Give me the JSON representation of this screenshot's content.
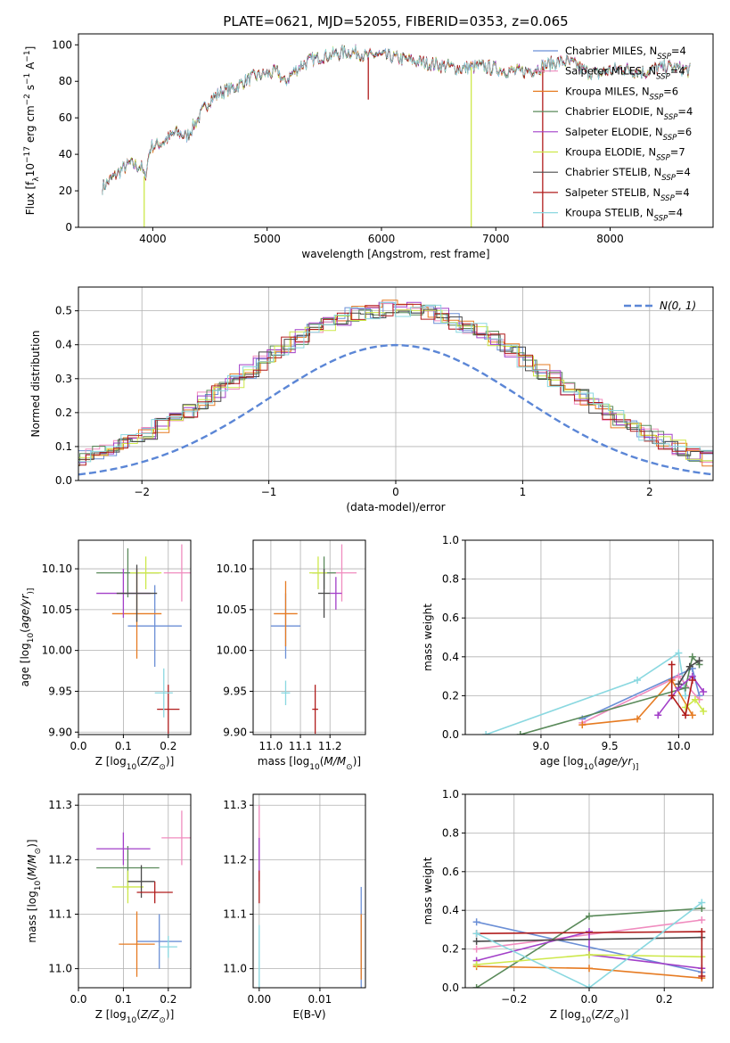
{
  "figure": {
    "title": "PLATE=0621, MJD=52055, FIBERID=0353, z=0.065"
  },
  "series_styles": [
    {
      "name": "Chabrier MILES",
      "label": "Chabrier MILES, N",
      "nssp": "4",
      "color": "#6b8fd6"
    },
    {
      "name": "Salpeter MILES",
      "label": "Salpeter MILES, N",
      "nssp": "4",
      "color": "#f08cbf"
    },
    {
      "name": "Kroupa MILES",
      "label": "Kroupa MILES, N",
      "nssp": "6",
      "color": "#e67b22"
    },
    {
      "name": "Chabrier ELODIE",
      "label": "Chabrier ELODIE, N",
      "nssp": "4",
      "color": "#5a8a5a"
    },
    {
      "name": "Salpeter ELODIE",
      "label": "Salpeter ELODIE, N",
      "nssp": "6",
      "color": "#a23fc8"
    },
    {
      "name": "Kroupa ELODIE",
      "label": "Kroupa ELODIE, N",
      "nssp": "7",
      "color": "#cde84a"
    },
    {
      "name": "Chabrier STELIB",
      "label": "Chabrier STELIB, N",
      "nssp": "4",
      "color": "#4a4a4a"
    },
    {
      "name": "Salpeter STELIB",
      "label": "Salpeter STELIB, N",
      "nssp": "4",
      "color": "#b01c1c"
    },
    {
      "name": "Kroupa STELIB",
      "label": "Kroupa STELIB, N",
      "nssp": "4",
      "color": "#8ad8e0"
    }
  ],
  "chart_data": [
    {
      "id": "spectrum",
      "type": "line",
      "xlabel": "wavelength [Angstrom, rest frame]",
      "ylabel_parts": [
        "Flux [f",
        "λ",
        "10",
        "−17",
        " erg cm",
        "−2",
        " s",
        "−1",
        " A",
        "−1",
        "]"
      ],
      "xlim": [
        3350,
        8900
      ],
      "ylim": [
        0,
        106
      ],
      "xticks": [
        4000,
        5000,
        6000,
        7000,
        8000
      ],
      "yticks": [
        0,
        20,
        40,
        60,
        80,
        100
      ],
      "legend_subscript": "SSP",
      "legend_position": "top-right",
      "continuum": [
        [
          3560,
          22
        ],
        [
          3700,
          30
        ],
        [
          3800,
          35
        ],
        [
          3900,
          33
        ],
        [
          3930,
          27
        ],
        [
          3980,
          44
        ],
        [
          4100,
          47
        ],
        [
          4200,
          52
        ],
        [
          4300,
          50
        ],
        [
          4400,
          60
        ],
        [
          4500,
          70
        ],
        [
          4600,
          74
        ],
        [
          4700,
          76
        ],
        [
          4800,
          80
        ],
        [
          4900,
          83
        ],
        [
          5000,
          84
        ],
        [
          5100,
          85
        ],
        [
          5150,
          79
        ],
        [
          5200,
          83
        ],
        [
          5300,
          89
        ],
        [
          5400,
          92
        ],
        [
          5500,
          94
        ],
        [
          5600,
          95
        ],
        [
          5700,
          96
        ],
        [
          5800,
          96
        ],
        [
          5880,
          93
        ],
        [
          5950,
          95
        ],
        [
          6000,
          94
        ],
        [
          6100,
          93
        ],
        [
          6200,
          92
        ],
        [
          6300,
          91
        ],
        [
          6400,
          90
        ],
        [
          6500,
          89
        ],
        [
          6600,
          88
        ],
        [
          6700,
          87
        ],
        [
          6800,
          88
        ],
        [
          6900,
          88
        ],
        [
          7000,
          87
        ],
        [
          7100,
          86
        ],
        [
          7200,
          85
        ],
        [
          7300,
          86
        ],
        [
          7400,
          88
        ],
        [
          7500,
          90
        ],
        [
          7600,
          91
        ],
        [
          7700,
          89
        ],
        [
          7800,
          85
        ],
        [
          7900,
          84
        ],
        [
          8000,
          86
        ],
        [
          8100,
          87
        ],
        [
          8200,
          86
        ],
        [
          8300,
          85
        ],
        [
          8400,
          87
        ],
        [
          8500,
          88
        ],
        [
          8600,
          87
        ],
        [
          8700,
          86
        ]
      ],
      "drops": [
        {
          "x": 3925,
          "series": 5
        },
        {
          "x": 6785,
          "series": 5
        },
        {
          "x": 7410,
          "series": 7
        },
        {
          "x": 5885,
          "series": 7,
          "to": 70
        }
      ]
    },
    {
      "id": "residuals",
      "type": "histogram",
      "xlabel": "(data-model)/error",
      "ylabel": "Normed distribution",
      "xlim": [
        -2.5,
        2.5
      ],
      "ylim": [
        0,
        0.57
      ],
      "xticks": [
        -2,
        -1,
        0,
        1,
        2
      ],
      "xticklabels": [
        "−2",
        "−1",
        "0",
        "1",
        "2"
      ],
      "yticks": [
        0.0,
        0.1,
        0.2,
        0.3,
        0.4,
        0.5
      ],
      "yticklabels": [
        "0.0",
        "0.1",
        "0.2",
        "0.3",
        "0.4",
        "0.5"
      ],
      "grid": true,
      "legend_label": "N(0, 1)",
      "legend_position": "top-right",
      "gauss_color": "#5b86d6"
    },
    {
      "id": "age_vs_Z",
      "type": "scatter",
      "xlabel_parts": [
        "Z [log",
        "10",
        "(",
        "Z/Z",
        "⊙",
        ")]"
      ],
      "ylabel_parts": [
        "age  [log",
        "10",
        "(",
        "age/yr",
        ")]"
      ],
      "xlim": [
        0.0,
        0.25
      ],
      "ylim": [
        9.897,
        10.135
      ],
      "xticks": [
        0.0,
        0.1,
        0.2
      ],
      "xticklabels": [
        "0.0",
        "0.1",
        "0.2"
      ],
      "yticks": [
        9.9,
        9.95,
        10.0,
        10.05,
        10.1
      ],
      "yticklabels": [
        "9.90",
        "9.95",
        "10.00",
        "10.05",
        "10.10"
      ],
      "grid": true,
      "points": [
        {
          "x": 0.17,
          "y": 10.03,
          "xerr": 0.06,
          "yerr": 0.05,
          "series": 0
        },
        {
          "x": 0.23,
          "y": 10.095,
          "xerr": 0.04,
          "yerr": 0.035,
          "series": 1
        },
        {
          "x": 0.13,
          "y": 10.045,
          "xerr": 0.055,
          "yerr": 0.055,
          "series": 2
        },
        {
          "x": 0.11,
          "y": 10.095,
          "xerr": 0.07,
          "yerr": 0.03,
          "series": 3
        },
        {
          "x": 0.1,
          "y": 10.07,
          "xerr": 0.06,
          "yerr": 0.03,
          "series": 4
        },
        {
          "x": 0.15,
          "y": 10.095,
          "xerr": 0.035,
          "yerr": 0.02,
          "series": 5
        },
        {
          "x": 0.13,
          "y": 10.07,
          "xerr": 0.045,
          "yerr": 0.035,
          "series": 6
        },
        {
          "x": 0.2,
          "y": 9.928,
          "xerr": 0.025,
          "yerr": 0.03,
          "series": 7
        },
        {
          "x": 0.19,
          "y": 9.948,
          "xerr": 0.02,
          "yerr": 0.03,
          "series": 8
        }
      ]
    },
    {
      "id": "age_vs_mass",
      "type": "scatter",
      "xlabel_parts": [
        "mass [log",
        "10",
        "(",
        "M/M",
        "⊙",
        ")]"
      ],
      "xlim": [
        10.94,
        11.32
      ],
      "ylim": [
        9.897,
        10.135
      ],
      "xticks": [
        11.0,
        11.1,
        11.2
      ],
      "xticklabels": [
        "11.0",
        "11.1",
        "11.2"
      ],
      "yticks": [
        9.9,
        9.95,
        10.0,
        10.05,
        10.1
      ],
      "yticklabels": [
        "9.90",
        "9.95",
        "10.00",
        "10.05",
        "10.10"
      ],
      "grid": true,
      "points": [
        {
          "x": 11.05,
          "y": 10.03,
          "xerr": 0.05,
          "yerr": 0.04,
          "series": 0
        },
        {
          "x": 11.24,
          "y": 10.095,
          "xerr": 0.05,
          "yerr": 0.035,
          "series": 1
        },
        {
          "x": 11.05,
          "y": 10.045,
          "xerr": 0.04,
          "yerr": 0.04,
          "series": 2
        },
        {
          "x": 11.18,
          "y": 10.095,
          "xerr": 0.04,
          "yerr": 0.02,
          "series": 3
        },
        {
          "x": 11.22,
          "y": 10.07,
          "xerr": 0.02,
          "yerr": 0.02,
          "series": 4
        },
        {
          "x": 11.16,
          "y": 10.095,
          "xerr": 0.03,
          "yerr": 0.02,
          "series": 5
        },
        {
          "x": 11.18,
          "y": 10.07,
          "xerr": 0.02,
          "yerr": 0.03,
          "series": 6
        },
        {
          "x": 11.15,
          "y": 9.928,
          "xerr": 0.01,
          "yerr": 0.03,
          "series": 7
        },
        {
          "x": 11.05,
          "y": 9.948,
          "xerr": 0.015,
          "yerr": 0.015,
          "series": 8
        }
      ]
    },
    {
      "id": "weight_vs_age",
      "type": "line",
      "xlabel_parts": [
        "age  [log",
        "10",
        "(",
        "age/yr",
        ")]"
      ],
      "ylabel": "mass weight",
      "xlim": [
        8.45,
        10.25
      ],
      "ylim": [
        0.0,
        1.0
      ],
      "xticks": [
        9.0,
        9.5,
        10.0
      ],
      "xticklabels": [
        "9.0",
        "9.5",
        "10.0"
      ],
      "yticks": [
        0.0,
        0.2,
        0.4,
        0.6,
        0.8,
        1.0
      ],
      "yticklabels": [
        "0.0",
        "0.2",
        "0.4",
        "0.6",
        "0.8",
        "1.0"
      ],
      "grid": true,
      "lines": [
        {
          "series": 8,
          "pts": [
            [
              8.6,
              0.0
            ],
            [
              9.7,
              0.28
            ],
            [
              10.0,
              0.42
            ],
            [
              10.05,
              0.2
            ]
          ]
        },
        {
          "series": 0,
          "pts": [
            [
              9.3,
              0.08
            ],
            [
              10.1,
              0.34
            ],
            [
              10.15,
              0.2
            ]
          ]
        },
        {
          "series": 1,
          "pts": [
            [
              9.3,
              0.06
            ],
            [
              10.0,
              0.3
            ],
            [
              10.15,
              0.18
            ]
          ]
        },
        {
          "series": 2,
          "pts": [
            [
              9.3,
              0.05
            ],
            [
              9.7,
              0.08
            ],
            [
              9.95,
              0.28
            ],
            [
              10.1,
              0.1
            ]
          ]
        },
        {
          "series": 3,
          "pts": [
            [
              8.85,
              0.0
            ],
            [
              10.05,
              0.24
            ],
            [
              10.1,
              0.4
            ],
            [
              10.15,
              0.36
            ]
          ]
        },
        {
          "series": 4,
          "pts": [
            [
              9.85,
              0.1
            ],
            [
              10.0,
              0.24
            ],
            [
              10.1,
              0.3
            ],
            [
              10.18,
              0.22
            ]
          ]
        },
        {
          "series": 5,
          "pts": [
            [
              10.05,
              0.14
            ],
            [
              10.12,
              0.18
            ],
            [
              10.18,
              0.12
            ]
          ]
        },
        {
          "series": 6,
          "pts": [
            [
              10.0,
              0.26
            ],
            [
              10.08,
              0.35
            ],
            [
              10.15,
              0.38
            ]
          ]
        },
        {
          "series": 7,
          "pts": [
            [
              9.95,
              0.36
            ],
            [
              9.95,
              0.2
            ],
            [
              10.05,
              0.1
            ],
            [
              10.1,
              0.28
            ]
          ]
        }
      ]
    },
    {
      "id": "mass_vs_Z",
      "type": "scatter",
      "xlabel_parts": [
        "Z [log",
        "10",
        "(",
        "Z/Z",
        "⊙",
        ")]"
      ],
      "ylabel_parts": [
        "mass [log",
        "10",
        "(",
        "M/M",
        "⊙",
        ")]"
      ],
      "xlim": [
        0.0,
        0.25
      ],
      "ylim": [
        10.965,
        11.32
      ],
      "xticks": [
        0.0,
        0.1,
        0.2
      ],
      "xticklabels": [
        "0.0",
        "0.1",
        "0.2"
      ],
      "yticks": [
        11.0,
        11.1,
        11.2,
        11.3
      ],
      "yticklabels": [
        "11.0",
        "11.1",
        "11.2",
        "11.3"
      ],
      "grid": true,
      "points": [
        {
          "x": 0.18,
          "y": 11.05,
          "xerr": 0.05,
          "yerr": 0.05,
          "series": 0
        },
        {
          "x": 0.23,
          "y": 11.24,
          "xerr": 0.045,
          "yerr": 0.05,
          "series": 1
        },
        {
          "x": 0.13,
          "y": 11.045,
          "xerr": 0.04,
          "yerr": 0.06,
          "series": 2
        },
        {
          "x": 0.11,
          "y": 11.185,
          "xerr": 0.07,
          "yerr": 0.04,
          "series": 3
        },
        {
          "x": 0.1,
          "y": 11.22,
          "xerr": 0.06,
          "yerr": 0.03,
          "series": 4
        },
        {
          "x": 0.11,
          "y": 11.15,
          "xerr": 0.035,
          "yerr": 0.03,
          "series": 5
        },
        {
          "x": 0.14,
          "y": 11.16,
          "xerr": 0.03,
          "yerr": 0.03,
          "series": 6
        },
        {
          "x": 0.17,
          "y": 11.14,
          "xerr": 0.04,
          "yerr": 0.02,
          "series": 7
        },
        {
          "x": 0.2,
          "y": 11.04,
          "xerr": 0.02,
          "yerr": 0.02,
          "series": 8
        }
      ]
    },
    {
      "id": "mass_vs_ebv",
      "type": "scatter",
      "xlabel": "E(B-V)",
      "xlim": [
        -0.001,
        0.0175
      ],
      "ylim": [
        10.965,
        11.32
      ],
      "xticks": [
        0.0,
        0.01
      ],
      "xticklabels": [
        "0.00",
        "0.01"
      ],
      "yticks": [
        11.0,
        11.1,
        11.2,
        11.3
      ],
      "yticklabels": [
        "11.0",
        "11.1",
        "11.2",
        "11.3"
      ],
      "grid": true,
      "points": [
        {
          "x": 0.0168,
          "y": 11.05,
          "xerr": 0.0,
          "yerr": 0.1,
          "series": 0
        },
        {
          "x": 0.0,
          "y": 11.25,
          "xerr": 0.0,
          "yerr": 0.05,
          "series": 1
        },
        {
          "x": 0.0168,
          "y": 11.04,
          "xerr": 0.0,
          "yerr": 0.06,
          "series": 2
        },
        {
          "x": 0.0,
          "y": 11.2,
          "xerr": 0.0,
          "yerr": 0.04,
          "series": 4
        },
        {
          "x": 0.0,
          "y": 11.15,
          "xerr": 0.0,
          "yerr": 0.03,
          "series": 7
        },
        {
          "x": 0.0,
          "y": 11.02,
          "xerr": 0.0,
          "yerr": 0.06,
          "series": 8
        }
      ]
    },
    {
      "id": "weight_vs_Z",
      "type": "line",
      "xlabel_parts": [
        "Z [log",
        "10",
        "(",
        "Z/Z",
        "⊙",
        ")]"
      ],
      "ylabel": "mass weight",
      "xlim": [
        -0.33,
        0.33
      ],
      "ylim": [
        0.0,
        1.0
      ],
      "xticks": [
        -0.2,
        0.0,
        0.2
      ],
      "xticklabels": [
        "−0.2",
        "0.0",
        "0.2"
      ],
      "yticks": [
        0.0,
        0.2,
        0.4,
        0.6,
        0.8,
        1.0
      ],
      "yticklabels": [
        "0.0",
        "0.2",
        "0.4",
        "0.6",
        "0.8",
        "1.0"
      ],
      "grid": true,
      "lines": [
        {
          "series": 0,
          "pts": [
            [
              -0.3,
              0.34
            ],
            [
              0.3,
              0.08
            ]
          ]
        },
        {
          "series": 1,
          "pts": [
            [
              -0.3,
              0.2
            ],
            [
              0.3,
              0.35
            ]
          ]
        },
        {
          "series": 2,
          "pts": [
            [
              -0.3,
              0.11
            ],
            [
              0.0,
              0.1
            ],
            [
              0.3,
              0.05
            ]
          ]
        },
        {
          "series": 3,
          "pts": [
            [
              -0.3,
              0.0
            ],
            [
              0.0,
              0.37
            ],
            [
              0.3,
              0.41
            ]
          ]
        },
        {
          "series": 4,
          "pts": [
            [
              -0.3,
              0.14
            ],
            [
              0.0,
              0.29
            ],
            [
              0.0,
              0.17
            ],
            [
              0.3,
              0.1
            ]
          ]
        },
        {
          "series": 5,
          "pts": [
            [
              -0.3,
              0.12
            ],
            [
              0.0,
              0.17
            ],
            [
              0.3,
              0.16
            ]
          ]
        },
        {
          "series": 6,
          "pts": [
            [
              -0.3,
              0.24
            ],
            [
              0.3,
              0.26
            ]
          ]
        },
        {
          "series": 7,
          "pts": [
            [
              -0.3,
              0.28
            ],
            [
              0.3,
              0.29
            ],
            [
              0.3,
              0.06
            ]
          ]
        },
        {
          "series": 8,
          "pts": [
            [
              -0.3,
              0.28
            ],
            [
              0.0,
              0.0
            ],
            [
              0.3,
              0.44
            ]
          ]
        }
      ]
    }
  ]
}
